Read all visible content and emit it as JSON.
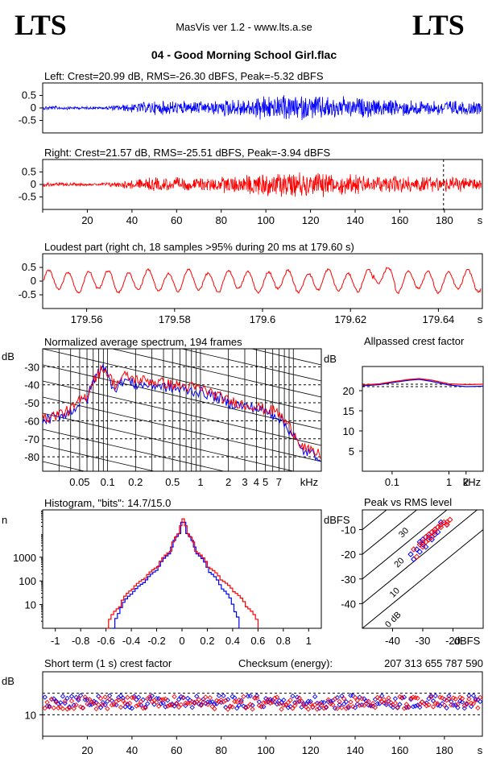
{
  "header": {
    "logo_left": "LTS",
    "logo_right": "LTS",
    "app": "MasVis ver 1.2 - www.lts.a.se",
    "file": "04 - Good Morning School Girl.flac"
  },
  "colors": {
    "left": "#0000ff",
    "right": "#ff0000",
    "grid": "#000000"
  },
  "chart_data": [
    {
      "type": "line",
      "id": "left-waveform",
      "title": "Left: Crest=20.99 dB, RMS=-26.30 dBFS, Peak=-5.32 dBFS",
      "y_ticks": [
        "0.5",
        "0",
        "-0.5"
      ],
      "ylim": [
        -1,
        1
      ],
      "xlim": [
        0,
        197
      ],
      "series": [
        {
          "color": "#0000ff",
          "envelope": [
            0.1,
            0.05,
            0.3,
            0.3,
            0.55,
            0.55,
            0.4,
            0.35,
            0.3
          ]
        }
      ]
    },
    {
      "type": "line",
      "id": "right-waveform",
      "title": "Right: Crest=21.57 dB, RMS=-25.51 dBFS, Peak=-3.94 dBFS",
      "y_ticks": [
        "0.5",
        "0",
        "-0.5"
      ],
      "x_ticks": [
        "20",
        "40",
        "60",
        "80",
        "100",
        "120",
        "140",
        "160",
        "180",
        "s"
      ],
      "x_tick_values": [
        20,
        40,
        60,
        80,
        100,
        120,
        140,
        160,
        180
      ],
      "ylim": [
        -1,
        1
      ],
      "xlim": [
        0,
        197
      ],
      "marker_x": 179.6,
      "series": [
        {
          "color": "#ff0000",
          "envelope": [
            0.1,
            0.05,
            0.3,
            0.3,
            0.55,
            0.55,
            0.4,
            0.35,
            0.3
          ]
        }
      ]
    },
    {
      "type": "line",
      "id": "loudest-part",
      "title": "Loudest part (right ch, 18 samples >95% during 20 ms at 179.60 s)",
      "y_ticks": [
        "0.5",
        "0",
        "-0.5"
      ],
      "x_ticks": [
        "179.56",
        "179.58",
        "179.6",
        "179.62",
        "179.64",
        "s"
      ],
      "x_tick_values": [
        179.56,
        179.58,
        179.6,
        179.62,
        179.64
      ],
      "xlim": [
        179.55,
        179.65
      ],
      "ylim": [
        -1,
        1
      ],
      "series": [
        {
          "color": "#ff0000",
          "cycles": 22,
          "amplitude": 0.35
        }
      ]
    },
    {
      "type": "line",
      "id": "spectrum",
      "title": "Normalized average spectrum, 194 frames",
      "ylabel": "dB",
      "y_ticks": [
        "-30",
        "-40",
        "-50",
        "-60",
        "-70",
        "-80"
      ],
      "y_tick_values": [
        -30,
        -40,
        -50,
        -60,
        -70,
        -80
      ],
      "ylim": [
        -88,
        -20
      ],
      "x_ticks": [
        "0.05",
        "0.1",
        "0.2",
        "0.5",
        "1",
        "2",
        "3",
        "4",
        "5",
        "7",
        "kHz"
      ],
      "x_tick_values": [
        0.05,
        0.1,
        0.2,
        0.5,
        1,
        2,
        3,
        4,
        5,
        7
      ],
      "xlim_khz": [
        0.02,
        20
      ],
      "series": [
        {
          "name": "left",
          "color": "#0000ff",
          "freq": [
            0.02,
            0.03,
            0.04,
            0.05,
            0.06,
            0.07,
            0.08,
            0.09,
            0.1,
            0.12,
            0.15,
            0.2,
            0.3,
            0.5,
            0.7,
            1,
            1.5,
            2,
            3,
            4,
            5,
            6,
            7,
            8,
            10,
            12,
            15,
            20
          ],
          "db": [
            -60,
            -57,
            -55,
            -50,
            -48,
            -38,
            -33,
            -28,
            -36,
            -42,
            -37,
            -40,
            -40,
            -42,
            -43,
            -44,
            -47,
            -50,
            -52,
            -53,
            -55,
            -56,
            -58,
            -62,
            -68,
            -76,
            -78,
            -80
          ]
        },
        {
          "name": "right",
          "color": "#ff0000",
          "freq": [
            0.02,
            0.03,
            0.04,
            0.05,
            0.06,
            0.07,
            0.08,
            0.09,
            0.1,
            0.12,
            0.15,
            0.2,
            0.3,
            0.5,
            0.7,
            1,
            1.5,
            2,
            3,
            4,
            5,
            6,
            7,
            8,
            10,
            12,
            15,
            20
          ],
          "db": [
            -59,
            -56,
            -54,
            -49,
            -46,
            -37,
            -34,
            -30,
            -34,
            -40,
            -35,
            -37,
            -38,
            -40,
            -41,
            -42,
            -46,
            -49,
            -51,
            -52,
            -54,
            -54,
            -56,
            -60,
            -66,
            -73,
            -77,
            -79
          ]
        }
      ]
    },
    {
      "type": "line",
      "id": "allpassed-crest",
      "title": "Allpassed crest factor",
      "ylabel": "dB",
      "y_ticks": [
        "20",
        "15",
        "10",
        "5"
      ],
      "y_tick_values": [
        20,
        15,
        10,
        5
      ],
      "ylim": [
        0,
        26
      ],
      "x_ticks": [
        "0.1",
        "1",
        "2",
        "kHz"
      ],
      "x_tick_values": [
        0.1,
        1,
        2
      ],
      "xlim_khz": [
        0.03,
        4
      ],
      "reference_lines": [
        21.6,
        21.0
      ],
      "series": [
        {
          "name": "left",
          "color": "#0000ff",
          "freq": [
            0.03,
            0.06,
            0.1,
            0.2,
            0.3,
            0.5,
            1,
            2,
            4
          ],
          "db": [
            21.2,
            21.5,
            22.0,
            22.6,
            22.8,
            22.3,
            21.4,
            21.0,
            21.1
          ]
        },
        {
          "name": "right",
          "color": "#ff0000",
          "freq": [
            0.03,
            0.06,
            0.1,
            0.2,
            0.3,
            0.5,
            1,
            2,
            4
          ],
          "db": [
            21.4,
            21.7,
            22.2,
            22.8,
            23.0,
            22.6,
            21.7,
            21.5,
            21.6
          ]
        }
      ]
    },
    {
      "type": "line",
      "id": "histogram",
      "title": "Histogram, \"bits\": 14.7/15.0",
      "ylabel": "n",
      "y_ticks": [
        "1000",
        "100",
        "10"
      ],
      "y_tick_values": [
        1000,
        100,
        10
      ],
      "ylog_range": [
        1,
        100000
      ],
      "x_ticks": [
        "-1",
        "-0.8",
        "-0.6",
        "-0.4",
        "-0.2",
        "0",
        "0.2",
        "0.4",
        "0.6",
        "0.8",
        "1"
      ],
      "x_tick_values": [
        -1,
        -0.8,
        -0.6,
        -0.4,
        -0.2,
        0,
        0.2,
        0.4,
        0.6,
        0.8,
        1
      ],
      "xlim": [
        -1.1,
        1.1
      ],
      "series": [
        {
          "name": "left",
          "color": "#0000ff",
          "x": [
            -0.55,
            -0.5,
            -0.4,
            -0.3,
            -0.2,
            -0.1,
            -0.03,
            0,
            0.03,
            0.1,
            0.2,
            0.3,
            0.4,
            0.45
          ],
          "n": [
            1,
            5,
            30,
            90,
            300,
            1500,
            10000,
            40000,
            10000,
            1500,
            250,
            50,
            6,
            1
          ]
        },
        {
          "name": "right",
          "color": "#ff0000",
          "x": [
            -0.6,
            -0.5,
            -0.4,
            -0.3,
            -0.2,
            -0.1,
            -0.03,
            0,
            0.03,
            0.1,
            0.2,
            0.3,
            0.4,
            0.5,
            0.6
          ],
          "n": [
            1,
            8,
            45,
            130,
            400,
            1800,
            11000,
            42000,
            11000,
            1800,
            380,
            110,
            35,
            8,
            1
          ]
        }
      ]
    },
    {
      "type": "scatter",
      "id": "peak-vs-rms",
      "title": "Peak vs RMS level",
      "ylabel": "dBFS",
      "xlabel": "dBFS",
      "y_ticks": [
        "-10",
        "-20",
        "-30",
        "-40"
      ],
      "y_tick_values": [
        -10,
        -20,
        -30,
        -40
      ],
      "x_ticks": [
        "-40",
        "-30",
        "-20"
      ],
      "x_tick_values": [
        -40,
        -30,
        -20
      ],
      "xlim": [
        -50,
        -10
      ],
      "ylim": [
        -50,
        -2
      ],
      "crest_lines": [
        "40",
        "30",
        "20",
        "10",
        "0 dB"
      ],
      "crest_values": [
        40,
        30,
        20,
        10,
        0
      ],
      "series": [
        {
          "name": "left",
          "color": "#0000ff",
          "rms": [
            -34,
            -32,
            -31,
            -30,
            -29,
            -28,
            -27,
            -26,
            -25,
            -24,
            -33,
            -30,
            -28,
            -26,
            -24,
            -22,
            -29,
            -27,
            -25,
            -31
          ],
          "peak": [
            -20,
            -18,
            -15,
            -14,
            -13,
            -12,
            -11,
            -10,
            -9,
            -8,
            -22,
            -16,
            -13,
            -12,
            -7,
            -8,
            -17,
            -14,
            -11,
            -19
          ]
        },
        {
          "name": "right",
          "color": "#ff0000",
          "rms": [
            -33,
            -31,
            -30,
            -29,
            -28,
            -27,
            -26,
            -25,
            -24,
            -23,
            -22,
            -21,
            -32,
            -30,
            -28,
            -26,
            -24,
            -22,
            -29,
            -27
          ],
          "peak": [
            -18,
            -16,
            -15,
            -13,
            -12,
            -11,
            -10,
            -9,
            -8,
            -7,
            -8,
            -6,
            -21,
            -17,
            -14,
            -11,
            -9,
            -7,
            -15,
            -13
          ]
        }
      ]
    },
    {
      "type": "scatter",
      "id": "short-term-crest",
      "title": "Short term (1 s) crest factor",
      "checksum_label": "Checksum (energy):",
      "checksum_value": "207 313 655 787 590",
      "ylabel": "dB",
      "y_ticks": [
        "10"
      ],
      "y_tick_values": [
        10
      ],
      "ylim": [
        0,
        30
      ],
      "reference_lines": [
        20,
        10
      ],
      "x_ticks": [
        "20",
        "40",
        "60",
        "80",
        "100",
        "120",
        "140",
        "160",
        "180",
        "s"
      ],
      "x_tick_values": [
        20,
        40,
        60,
        80,
        100,
        120,
        140,
        160,
        180
      ],
      "xlim": [
        0,
        197
      ],
      "series": [
        {
          "name": "left",
          "color": "#0000ff",
          "mean": 16,
          "spread": 3
        },
        {
          "name": "right",
          "color": "#ff0000",
          "mean": 15.5,
          "spread": 3
        }
      ]
    }
  ]
}
